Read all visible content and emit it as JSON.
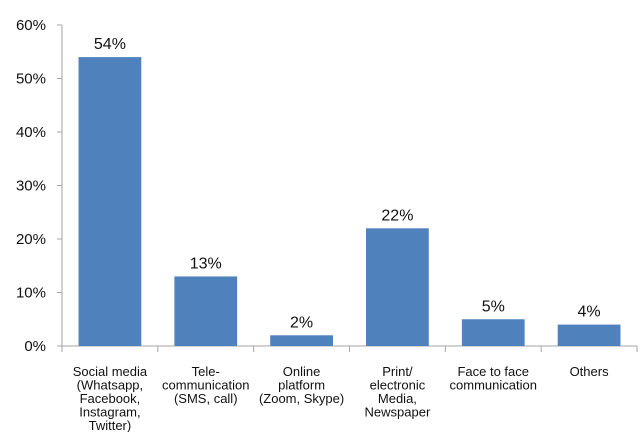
{
  "chart_data": {
    "type": "bar",
    "categories": [
      "Social media (Whatsapp, Facebook, Instagram, Twitter)",
      "Tele-communication (SMS, call)",
      "Online platform (Zoom, Skype)",
      "Print/ electronic Media, Newspaper",
      "Face to face communication",
      "Others"
    ],
    "category_lines": [
      [
        "Social media",
        "(Whatsapp,",
        "Facebook,",
        "Instagram,",
        "Twitter)"
      ],
      [
        "Tele-",
        "communication",
        "(SMS, call)"
      ],
      [
        "Online",
        "platform",
        "(Zoom, Skype)"
      ],
      [
        "Print/",
        "electronic",
        "Media,",
        "Newspaper"
      ],
      [
        "Face to face",
        "communication"
      ],
      [
        "Others"
      ]
    ],
    "values": [
      54,
      13,
      2,
      22,
      5,
      4
    ],
    "data_labels": [
      "54%",
      "13%",
      "2%",
      "22%",
      "5%",
      "4%"
    ],
    "yticks": [
      "0%",
      "10%",
      "20%",
      "30%",
      "40%",
      "50%",
      "60%"
    ],
    "ylim": [
      0,
      60
    ],
    "title": "",
    "xlabel": "",
    "ylabel": "",
    "grid": false,
    "legend": "none",
    "bar_color": "#4F81BD",
    "axis_color": "#A6A6A6"
  }
}
